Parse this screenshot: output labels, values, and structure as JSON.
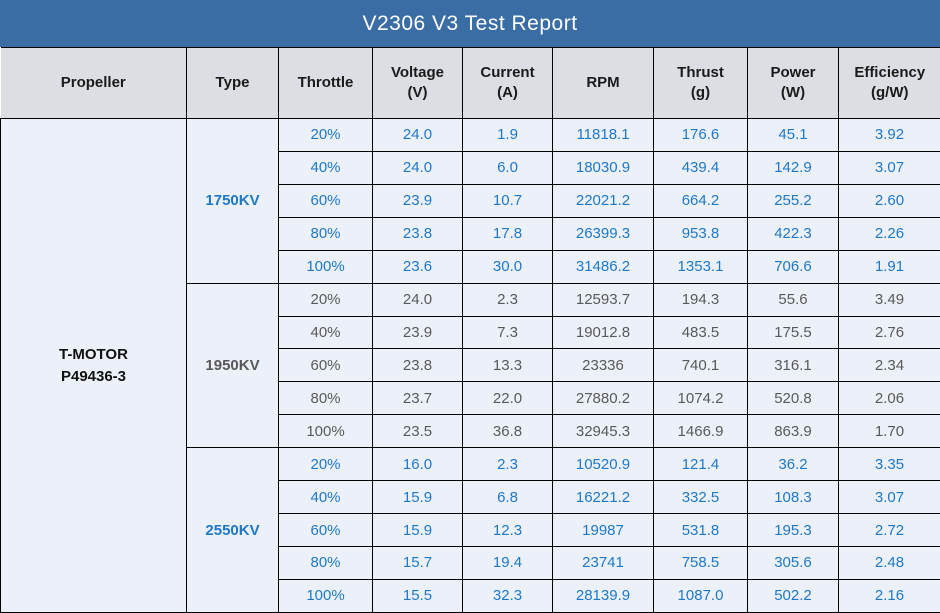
{
  "colors": {
    "title_bar_bg": "#3A6DA4",
    "title_text": "#FFFFFF",
    "header_bg": "#DBDFE4",
    "header_text": "#1A1A1A",
    "body_bg": "#ECF1F9",
    "blue_value_text": "#1E78C8",
    "gray_value_text": "#595959",
    "propeller_text": "#111111",
    "grid_border": "#000000"
  },
  "chart_data": {
    "type": "table",
    "title": "V2306 V3 Test Report",
    "columns": [
      {
        "label": "Propeller",
        "unit": ""
      },
      {
        "label": "Type",
        "unit": ""
      },
      {
        "label": "Throttle",
        "unit": ""
      },
      {
        "label": "Voltage",
        "unit": "(V)"
      },
      {
        "label": "Current",
        "unit": "(A)"
      },
      {
        "label": "RPM",
        "unit": ""
      },
      {
        "label": "Thrust",
        "unit": "(g)"
      },
      {
        "label": "Power",
        "unit": "(W)"
      },
      {
        "label": "Efficiency",
        "unit": "(g/W)"
      }
    ],
    "propeller": {
      "line1": "T-MOTOR",
      "line2": "P49436-3"
    },
    "groups": [
      {
        "type": "1750KV",
        "style": "blue",
        "rows": [
          {
            "throttle": "20%",
            "voltage": "24.0",
            "current": "1.9",
            "rpm": "11818.1",
            "thrust": "176.6",
            "power": "45.1",
            "efficiency": "3.92"
          },
          {
            "throttle": "40%",
            "voltage": "24.0",
            "current": "6.0",
            "rpm": "18030.9",
            "thrust": "439.4",
            "power": "142.9",
            "efficiency": "3.07"
          },
          {
            "throttle": "60%",
            "voltage": "23.9",
            "current": "10.7",
            "rpm": "22021.2",
            "thrust": "664.2",
            "power": "255.2",
            "efficiency": "2.60"
          },
          {
            "throttle": "80%",
            "voltage": "23.8",
            "current": "17.8",
            "rpm": "26399.3",
            "thrust": "953.8",
            "power": "422.3",
            "efficiency": "2.26"
          },
          {
            "throttle": "100%",
            "voltage": "23.6",
            "current": "30.0",
            "rpm": "31486.2",
            "thrust": "1353.1",
            "power": "706.6",
            "efficiency": "1.91"
          }
        ]
      },
      {
        "type": "1950KV",
        "style": "gray",
        "rows": [
          {
            "throttle": "20%",
            "voltage": "24.0",
            "current": "2.3",
            "rpm": "12593.7",
            "thrust": "194.3",
            "power": "55.6",
            "efficiency": "3.49"
          },
          {
            "throttle": "40%",
            "voltage": "23.9",
            "current": "7.3",
            "rpm": "19012.8",
            "thrust": "483.5",
            "power": "175.5",
            "efficiency": "2.76"
          },
          {
            "throttle": "60%",
            "voltage": "23.8",
            "current": "13.3",
            "rpm": "23336",
            "thrust": "740.1",
            "power": "316.1",
            "efficiency": "2.34"
          },
          {
            "throttle": "80%",
            "voltage": "23.7",
            "current": "22.0",
            "rpm": "27880.2",
            "thrust": "1074.2",
            "power": "520.8",
            "efficiency": "2.06"
          },
          {
            "throttle": "100%",
            "voltage": "23.5",
            "current": "36.8",
            "rpm": "32945.3",
            "thrust": "1466.9",
            "power": "863.9",
            "efficiency": "1.70"
          }
        ]
      },
      {
        "type": "2550KV",
        "style": "blue",
        "rows": [
          {
            "throttle": "20%",
            "voltage": "16.0",
            "current": "2.3",
            "rpm": "10520.9",
            "thrust": "121.4",
            "power": "36.2",
            "efficiency": "3.35"
          },
          {
            "throttle": "40%",
            "voltage": "15.9",
            "current": "6.8",
            "rpm": "16221.2",
            "thrust": "332.5",
            "power": "108.3",
            "efficiency": "3.07"
          },
          {
            "throttle": "60%",
            "voltage": "15.9",
            "current": "12.3",
            "rpm": "19987",
            "thrust": "531.8",
            "power": "195.3",
            "efficiency": "2.72"
          },
          {
            "throttle": "80%",
            "voltage": "15.7",
            "current": "19.4",
            "rpm": "23741",
            "thrust": "758.5",
            "power": "305.6",
            "efficiency": "2.48"
          },
          {
            "throttle": "100%",
            "voltage": "15.5",
            "current": "32.3",
            "rpm": "28139.9",
            "thrust": "1087.0",
            "power": "502.2",
            "efficiency": "2.16"
          }
        ]
      }
    ]
  }
}
